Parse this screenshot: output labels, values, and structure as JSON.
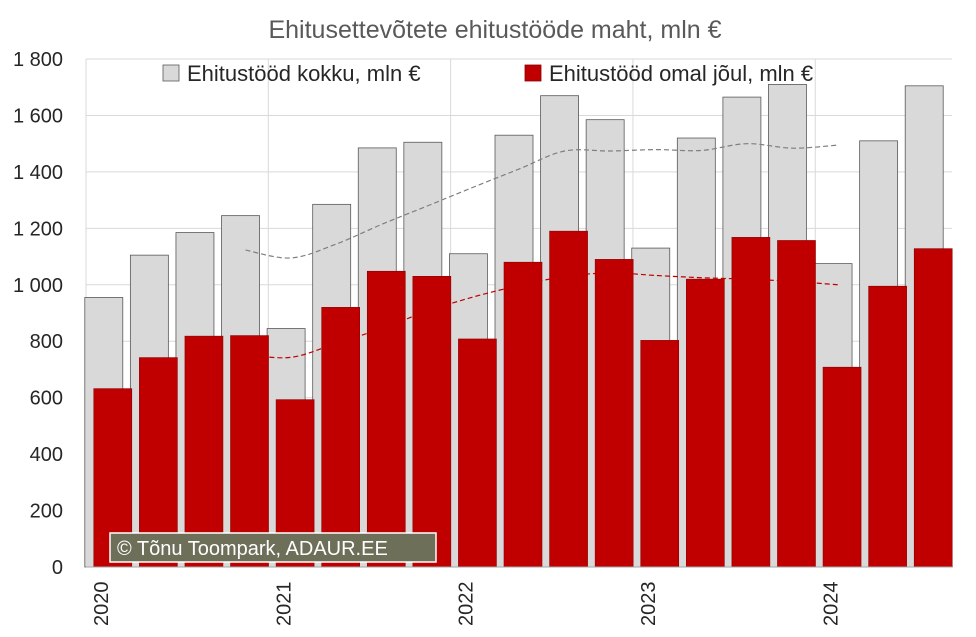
{
  "chart_data": {
    "type": "bar",
    "title": "Ehitusettevõtete ehitustööde maht, mln €",
    "xlabel": "",
    "ylabel": "",
    "ylim": [
      0,
      1800
    ],
    "yticks": [
      0,
      200,
      400,
      600,
      800,
      1000,
      1200,
      1400,
      1600,
      1800
    ],
    "ytick_labels": [
      "0",
      "200",
      "400",
      "600",
      "800",
      "1 000",
      "1 200",
      "1 400",
      "1 600",
      "1 800"
    ],
    "grid": true,
    "legend_position": "top",
    "categories": [
      "2020 Q1",
      "2020 Q2",
      "2020 Q3",
      "2020 Q4",
      "2021 Q1",
      "2021 Q2",
      "2021 Q3",
      "2021 Q4",
      "2022 Q1",
      "2022 Q2",
      "2022 Q3",
      "2022 Q4",
      "2023 Q1",
      "2023 Q2",
      "2023 Q3",
      "2023 Q4",
      "2024 Q1",
      "2024 Q2",
      "2024 Q3"
    ],
    "year_labels": [
      "2020",
      "2021",
      "2022",
      "2023",
      "2024"
    ],
    "series": [
      {
        "name": "Ehitustööd kokku, mln €",
        "color": "#d9d9d9",
        "values": [
          955,
          1105,
          1185,
          1245,
          845,
          1285,
          1485,
          1505,
          1110,
          1530,
          1670,
          1585,
          1130,
          1520,
          1665,
          1710,
          1075,
          1510,
          1705
        ]
      },
      {
        "name": "Ehitustööd omal jõul, mln €",
        "color": "#c00000",
        "values": [
          632,
          742,
          818,
          820,
          593,
          920,
          1048,
          1030,
          808,
          1080,
          1190,
          1090,
          803,
          1020,
          1168,
          1157,
          708,
          995,
          1128
        ]
      }
    ],
    "trend_lines": [
      {
        "series": "Ehitustööd kokku, mln €",
        "color": "#7f7f7f",
        "values": [
          null,
          null,
          null,
          1123,
          1095,
          1145,
          1215,
          1280,
          1346,
          1410,
          1474,
          1474,
          1479,
          1476,
          1500,
          1484,
          1495,
          null,
          null
        ]
      },
      {
        "series": "Ehitustööd omal jõul, mln €",
        "color": "#c00000",
        "values": [
          null,
          null,
          null,
          753,
          743,
          793,
          846,
          907,
          957,
          997,
          1029,
          1042,
          1033,
          1025,
          1020,
          1012,
          1000,
          null,
          null
        ]
      }
    ]
  },
  "credit": {
    "text": "© Tõnu Toompark, ADAUR.EE"
  }
}
